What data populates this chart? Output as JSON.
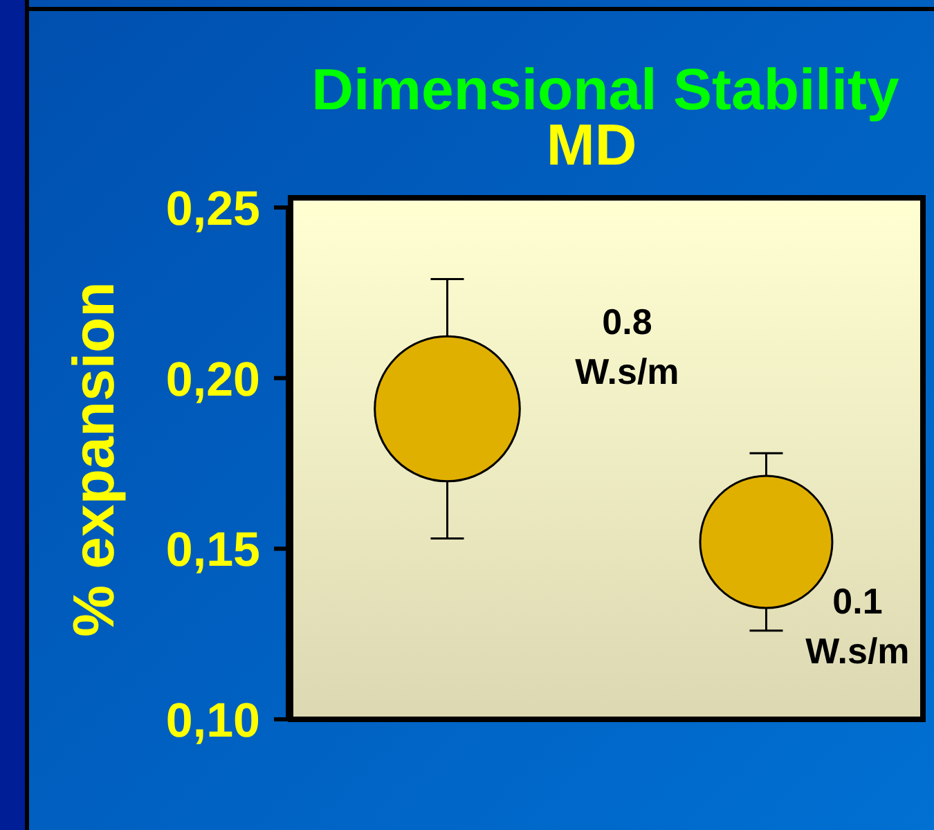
{
  "chart_data": {
    "type": "bubble",
    "title": "Dimensional Stability",
    "subtitle": "MD",
    "ylabel": "% expansion",
    "categories": [
      null,
      null
    ],
    "series": [
      {
        "name": "0.8 W.s/m",
        "color": "#e0b000",
        "values": [
          0.191,
          null
        ],
        "sizes": [
          1,
          null
        ],
        "errors": [
          0.038,
          null
        ]
      },
      {
        "name": "0.1 W.s/m",
        "color": "#e0b000",
        "values": [
          null,
          0.152
        ],
        "sizes": [
          null,
          0.83
        ],
        "errors": [
          null,
          0.026
        ]
      }
    ],
    "ylim": [
      0.1,
      0.25
    ],
    "yticks": [
      {
        "value": 0.1,
        "label": "0,10"
      },
      {
        "value": 0.15,
        "label": "0,15"
      },
      {
        "value": 0.2,
        "label": "0,20"
      },
      {
        "value": 0.25,
        "label": "0,25"
      }
    ],
    "tick_labels": "y"
  }
}
